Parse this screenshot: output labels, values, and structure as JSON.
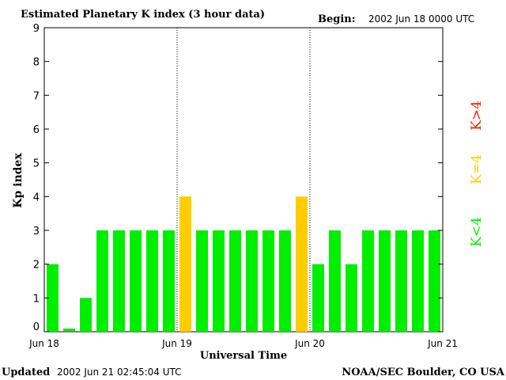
{
  "chart_data": {
    "type": "bar",
    "title": "Estimated Planetary K index (3 hour data)",
    "begin_label": "Begin:",
    "begin_value": "2002 Jun 18 0000 UTC",
    "xlabel": "Universal Time",
    "ylabel": "Kp index",
    "ylim": [
      0,
      9
    ],
    "yticks": [
      "0",
      "1",
      "2",
      "3",
      "4",
      "5",
      "6",
      "7",
      "8",
      "9"
    ],
    "xticks": [
      "Jun 18",
      "Jun 19",
      "Jun 20",
      "Jun 21"
    ],
    "values": [
      2,
      0,
      1,
      3,
      3,
      3,
      3,
      3,
      4,
      3,
      3,
      3,
      3,
      3,
      3,
      4,
      2,
      3,
      2,
      3,
      3,
      3,
      3,
      3
    ],
    "legend": [
      {
        "label": "K<4",
        "color": "#00ee00"
      },
      {
        "label": "K=4",
        "color": "#ffcc00"
      },
      {
        "label": "K>4",
        "color": "#ee2200"
      }
    ],
    "colors": {
      "low": "#00ee00",
      "mid": "#ffcc00",
      "high": "#ee2200"
    },
    "grid": false
  },
  "footer": {
    "updated_label": "Updated",
    "updated_value": "2002 Jun 21 02:45:04 UTC",
    "source": "NOAA/SEC Boulder, CO USA"
  }
}
